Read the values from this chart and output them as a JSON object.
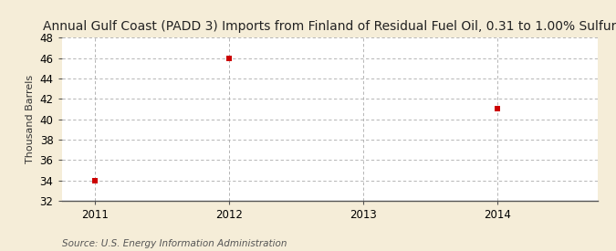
{
  "title": "Annual Gulf Coast (PADD 3) Imports from Finland of Residual Fuel Oil, 0.31 to 1.00% Sulfur",
  "ylabel": "Thousand Barrels",
  "source": "Source: U.S. Energy Information Administration",
  "x_data": [
    2011,
    2012,
    2014
  ],
  "y_data": [
    34,
    46,
    41
  ],
  "xlim": [
    2010.75,
    2014.75
  ],
  "ylim": [
    32,
    48
  ],
  "yticks": [
    32,
    34,
    36,
    38,
    40,
    42,
    44,
    46,
    48
  ],
  "xticks": [
    2011,
    2012,
    2013,
    2014
  ],
  "marker_color": "#cc0000",
  "marker": "s",
  "marker_size": 4,
  "bg_color": "#f5edd8",
  "plot_bg_color": "#ffffff",
  "grid_color": "#aaaaaa",
  "title_fontsize": 10,
  "axis_fontsize": 8,
  "tick_fontsize": 8.5,
  "source_fontsize": 7.5
}
